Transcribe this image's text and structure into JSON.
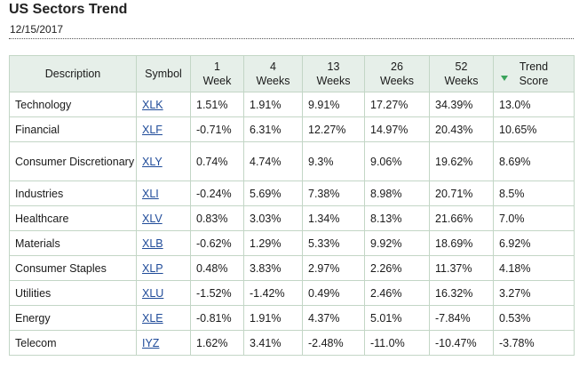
{
  "page": {
    "title": "US Sectors Trend",
    "date": "12/15/2017"
  },
  "table": {
    "headers": {
      "description": "Description",
      "symbol": "Symbol",
      "w1": [
        "1",
        "Week"
      ],
      "w4": [
        "4",
        "Weeks"
      ],
      "w13": [
        "13",
        "Weeks"
      ],
      "w26": [
        "26",
        "Weeks"
      ],
      "w52": [
        "52",
        "Weeks"
      ],
      "trend": [
        "Trend",
        "Score"
      ]
    },
    "sort_icon": "sort-desc-triangle-icon",
    "colors": {
      "header_bg": "#e6efe9",
      "border": "#c3d6c6",
      "link": "#1f4b99",
      "sort_icon": "#3aa35b"
    },
    "rows": [
      {
        "description": "Technology",
        "symbol": "XLK",
        "w1": "1.51%",
        "w4": "1.91%",
        "w13": "9.91%",
        "w26": "17.27%",
        "w52": "34.39%",
        "trend": "13.0%"
      },
      {
        "description": "Financial",
        "symbol": "XLF",
        "w1": "-0.71%",
        "w4": "6.31%",
        "w13": "12.27%",
        "w26": "14.97%",
        "w52": "20.43%",
        "trend": "10.65%"
      },
      {
        "description": "Consumer Discretionary",
        "symbol": "XLY",
        "w1": "0.74%",
        "w4": "4.74%",
        "w13": "9.3%",
        "w26": "9.06%",
        "w52": "19.62%",
        "trend": "8.69%"
      },
      {
        "description": "Industries",
        "symbol": "XLI",
        "w1": "-0.24%",
        "w4": "5.69%",
        "w13": "7.38%",
        "w26": "8.98%",
        "w52": "20.71%",
        "trend": "8.5%"
      },
      {
        "description": "Healthcare",
        "symbol": "XLV",
        "w1": "0.83%",
        "w4": "3.03%",
        "w13": "1.34%",
        "w26": "8.13%",
        "w52": "21.66%",
        "trend": "7.0%"
      },
      {
        "description": "Materials",
        "symbol": "XLB",
        "w1": "-0.62%",
        "w4": "1.29%",
        "w13": "5.33%",
        "w26": "9.92%",
        "w52": "18.69%",
        "trend": "6.92%"
      },
      {
        "description": "Consumer Staples",
        "symbol": "XLP",
        "w1": "0.48%",
        "w4": "3.83%",
        "w13": "2.97%",
        "w26": "2.26%",
        "w52": "11.37%",
        "trend": "4.18%"
      },
      {
        "description": "Utilities",
        "symbol": "XLU",
        "w1": "-1.52%",
        "w4": "-1.42%",
        "w13": "0.49%",
        "w26": "2.46%",
        "w52": "16.32%",
        "trend": "3.27%"
      },
      {
        "description": "Energy",
        "symbol": "XLE",
        "w1": "-0.81%",
        "w4": "1.91%",
        "w13": "4.37%",
        "w26": "5.01%",
        "w52": "-7.84%",
        "trend": "0.53%"
      },
      {
        "description": "Telecom",
        "symbol": "IYZ",
        "w1": "1.62%",
        "w4": "3.41%",
        "w13": "-2.48%",
        "w26": "-11.0%",
        "w52": "-10.47%",
        "trend": "-3.78%"
      }
    ]
  }
}
